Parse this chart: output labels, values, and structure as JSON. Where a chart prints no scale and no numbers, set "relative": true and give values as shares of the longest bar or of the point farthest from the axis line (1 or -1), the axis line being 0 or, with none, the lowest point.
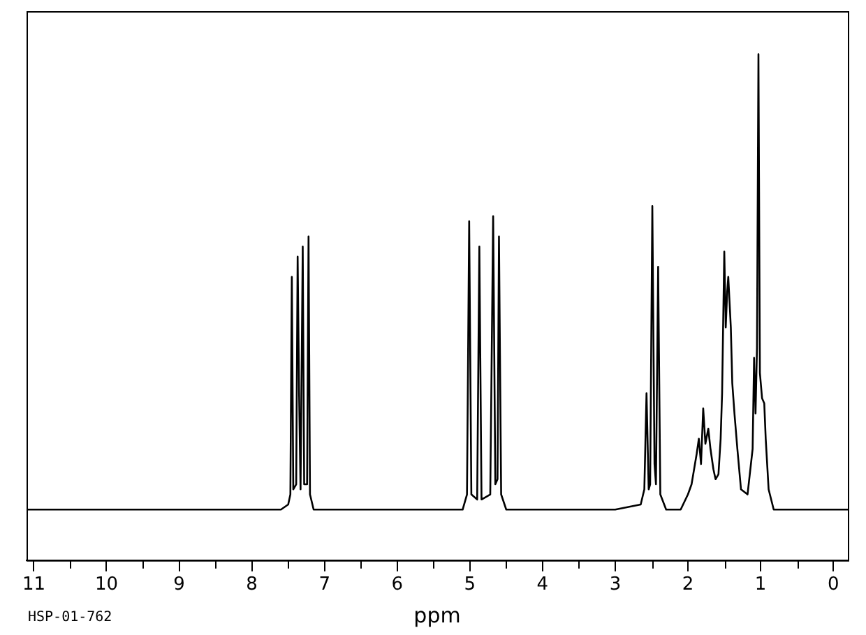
{
  "chart_data": {
    "type": "line",
    "relative": true,
    "xlabel": "ppm",
    "annotations": [
      "HSP-01-762"
    ],
    "xlim": [
      11.1,
      -0.2
    ],
    "xticks": [
      11,
      {
        "value": 10.5,
        "label": null
      },
      10,
      {
        "value": 9.5,
        "label": null
      },
      9,
      {
        "value": 8.5,
        "label": null
      },
      8,
      {
        "value": 7.5,
        "label": null
      },
      7,
      {
        "value": 6.5,
        "label": null
      },
      6,
      {
        "value": 5.5,
        "label": null
      },
      5,
      {
        "value": 4.5,
        "label": null
      },
      4,
      {
        "value": 3.5,
        "label": null
      },
      3,
      {
        "value": 2.5,
        "label": null
      },
      2,
      {
        "value": 1.5,
        "label": null
      },
      1,
      {
        "value": 0.5,
        "label": null
      },
      0
    ],
    "tick_labels": "x",
    "legend": false,
    "grid": false,
    "series": [
      {
        "color": "#000000",
        "x": [
          11.1,
          9,
          7.6,
          7.5,
          7.47,
          7.45,
          7.43,
          7.39,
          7.37,
          7.35,
          7.33,
          7.3,
          7.28,
          7.24,
          7.22,
          7.2,
          7.15,
          6,
          5.1,
          5.04,
          5.01,
          4.98,
          4.9,
          4.87,
          4.84,
          4.72,
          4.68,
          4.65,
          4.62,
          4.6,
          4.57,
          4.5,
          3,
          2.65,
          2.6,
          2.57,
          2.54,
          2.52,
          2.49,
          2.46,
          2.44,
          2.41,
          2.38,
          2.3,
          2.1,
          2,
          1.95,
          1.88,
          1.85,
          1.82,
          1.79,
          1.76,
          1.72,
          1.69,
          1.65,
          1.62,
          1.58,
          1.55,
          1.53,
          1.5,
          1.48,
          1.46,
          1.445,
          1.41,
          1.39,
          1.36,
          1.32,
          1.27,
          1.18,
          1.11,
          1.09,
          1.07,
          1.05,
          1.03,
          1.01,
          0.98,
          0.95,
          0.93,
          0.89,
          0.82,
          -0.2
        ],
        "values": [
          0.1,
          0.1,
          0.1,
          0.11,
          0.13,
          0.56,
          0.14,
          0.15,
          0.6,
          0.33,
          0.14,
          0.62,
          0.15,
          0.15,
          0.64,
          0.13,
          0.1,
          0.1,
          0.1,
          0.13,
          0.67,
          0.13,
          0.12,
          0.62,
          0.12,
          0.13,
          0.68,
          0.15,
          0.16,
          0.64,
          0.13,
          0.1,
          0.1,
          0.11,
          0.14,
          0.33,
          0.14,
          0.15,
          0.7,
          0.19,
          0.15,
          0.58,
          0.13,
          0.1,
          0.1,
          0.13,
          0.15,
          0.21,
          0.24,
          0.19,
          0.3,
          0.23,
          0.26,
          0.22,
          0.18,
          0.16,
          0.17,
          0.24,
          0.33,
          0.61,
          0.46,
          0.53,
          0.56,
          0.46,
          0.35,
          0.29,
          0.22,
          0.14,
          0.13,
          0.22,
          0.4,
          0.29,
          0.42,
          1,
          0.37,
          0.32,
          0.31,
          0.24,
          0.14,
          0.1,
          0.1
        ]
      }
    ]
  }
}
